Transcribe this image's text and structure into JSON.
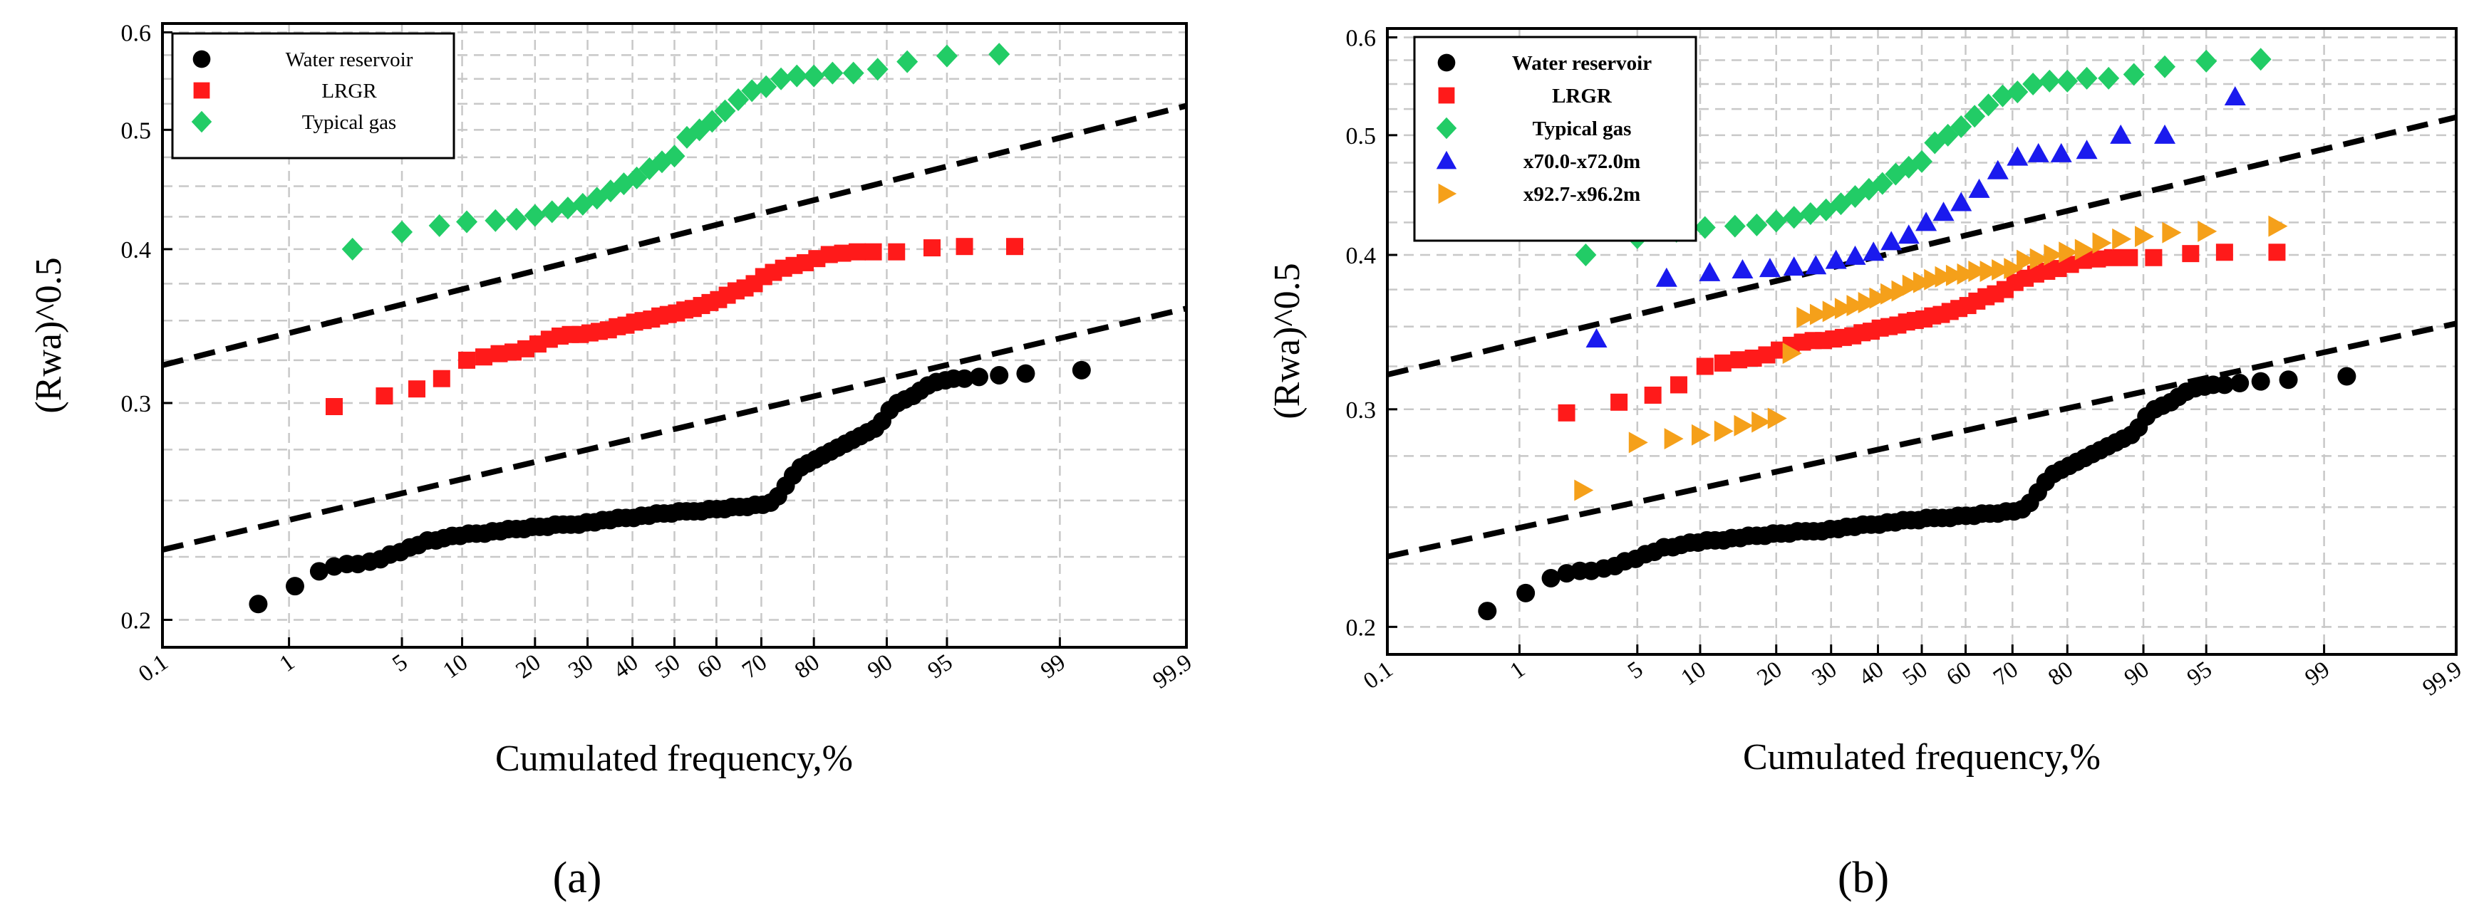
{
  "chart_data": [
    {
      "panel_label": "(a)",
      "type": "scatter",
      "xlabel": "Cumulated frequency,%",
      "ylabel": "(Rwa)^0.5",
      "x_scale": "probability",
      "y_scale": "log",
      "xlim": [
        0.1,
        99.9
      ],
      "ylim": [
        0.19,
        0.61
      ],
      "x_ticks": [
        0.1,
        1,
        5,
        10,
        20,
        30,
        40,
        50,
        60,
        70,
        80,
        90,
        95,
        99,
        99.9
      ],
      "x_tick_labels": [
        "0.1",
        "1",
        "5",
        "10",
        "20",
        "30",
        "40",
        "50",
        "60",
        "70",
        "80",
        "90",
        "95",
        "99",
        "99.9"
      ],
      "y_ticks": [
        0.2,
        0.3,
        0.4,
        0.5,
        0.6
      ],
      "y_tick_labels": [
        "0.2",
        "0.3",
        "0.4",
        "0.5",
        "0.6"
      ],
      "grid": true,
      "legend_position": "top-left",
      "series": [
        {
          "name": "Water reservoir",
          "marker": "circle",
          "color": "#000000",
          "x": [
            0.6,
            1.1,
            1.6,
            2.0,
            2.4,
            2.8,
            3.3,
            3.8,
            4.3,
            4.9,
            5.5,
            6.1,
            6.8,
            7.5,
            8.2,
            9.0,
            9.8,
            10.7,
            11.6,
            12.6,
            13.6,
            14.7,
            15.8,
            17.0,
            18.2,
            19.5,
            20.8,
            22.2,
            23.6,
            25.1,
            26.6,
            28.2,
            29.8,
            31.5,
            33.2,
            34.9,
            36.7,
            38.5,
            40.3,
            42.1,
            43.9,
            45.7,
            47.5,
            49.3,
            51.1,
            52.9,
            54.7,
            56.5,
            58.3,
            60.1,
            61.9,
            63.6,
            65.3,
            67.0,
            68.7,
            70.3,
            71.9,
            73.4,
            74.9,
            76.3,
            77.7,
            79.0,
            80.3,
            81.5,
            82.7,
            83.8,
            84.9,
            85.9,
            86.9,
            87.8,
            88.7,
            89.5,
            90.3,
            91.1,
            91.8,
            92.5,
            93.1,
            93.7,
            94.3,
            94.9,
            95.4,
            96.0,
            96.7,
            97.5,
            98.3,
            99.3
          ],
          "y": [
            0.206,
            0.213,
            0.219,
            0.221,
            0.222,
            0.222,
            0.223,
            0.224,
            0.226,
            0.227,
            0.229,
            0.23,
            0.232,
            0.232,
            0.233,
            0.234,
            0.234,
            0.235,
            0.235,
            0.235,
            0.236,
            0.236,
            0.237,
            0.237,
            0.237,
            0.238,
            0.238,
            0.238,
            0.239,
            0.239,
            0.239,
            0.239,
            0.24,
            0.24,
            0.241,
            0.241,
            0.242,
            0.242,
            0.242,
            0.243,
            0.243,
            0.244,
            0.244,
            0.244,
            0.245,
            0.245,
            0.245,
            0.245,
            0.246,
            0.246,
            0.246,
            0.247,
            0.247,
            0.247,
            0.248,
            0.248,
            0.249,
            0.252,
            0.257,
            0.262,
            0.266,
            0.268,
            0.27,
            0.272,
            0.274,
            0.276,
            0.278,
            0.28,
            0.282,
            0.284,
            0.286,
            0.29,
            0.296,
            0.3,
            0.302,
            0.304,
            0.307,
            0.31,
            0.312,
            0.313,
            0.314,
            0.314,
            0.315,
            0.316,
            0.317,
            0.319
          ]
        },
        {
          "name": "LRGR",
          "marker": "square",
          "color": "#ff1a1a",
          "x": [
            2.0,
            4.0,
            6.0,
            8.0,
            10.5,
            12.5,
            14.5,
            16.5,
            18.5,
            20.5,
            22.5,
            24.5,
            26.5,
            28.5,
            30.5,
            32.5,
            34.5,
            36.5,
            38.5,
            40.5,
            42.5,
            44.5,
            46.5,
            48.5,
            50.5,
            52.5,
            54.5,
            56.5,
            58.5,
            60.5,
            62.5,
            64.5,
            66.5,
            68.5,
            70.5,
            72.5,
            74.5,
            76.5,
            78.5,
            80.5,
            82.5,
            84.5,
            86.5,
            88.5,
            91.0,
            94.0,
            96.0,
            98.0
          ],
          "y": [
            0.298,
            0.304,
            0.308,
            0.314,
            0.325,
            0.327,
            0.329,
            0.33,
            0.332,
            0.335,
            0.338,
            0.34,
            0.341,
            0.341,
            0.342,
            0.343,
            0.344,
            0.346,
            0.347,
            0.349,
            0.35,
            0.351,
            0.353,
            0.354,
            0.355,
            0.357,
            0.358,
            0.36,
            0.362,
            0.364,
            0.367,
            0.37,
            0.372,
            0.375,
            0.38,
            0.383,
            0.386,
            0.388,
            0.39,
            0.393,
            0.396,
            0.397,
            0.398,
            0.398,
            0.398,
            0.401,
            0.402,
            0.402
          ]
        },
        {
          "name": "Typical gas",
          "marker": "diamond",
          "color": "#22cc66",
          "x": [
            2.6,
            5.0,
            7.8,
            10.5,
            14.0,
            17.0,
            20.0,
            23.0,
            26.0,
            29.0,
            32.0,
            35.0,
            38.0,
            41.0,
            44.0,
            47.0,
            50.0,
            53.0,
            56.0,
            59.0,
            62.0,
            65.0,
            68.0,
            71.0,
            74.0,
            77.0,
            80.0,
            83.0,
            86.0,
            89.0,
            92.0,
            95.0,
            97.5
          ],
          "y": [
            0.4,
            0.413,
            0.418,
            0.421,
            0.422,
            0.423,
            0.426,
            0.429,
            0.432,
            0.435,
            0.44,
            0.446,
            0.452,
            0.457,
            0.465,
            0.471,
            0.476,
            0.493,
            0.5,
            0.508,
            0.518,
            0.529,
            0.538,
            0.542,
            0.55,
            0.553,
            0.553,
            0.556,
            0.556,
            0.56,
            0.568,
            0.574,
            0.576
          ]
        }
      ],
      "trend_lines": [
        {
          "style": "dashed",
          "color": "#000000",
          "from": [
            0.1,
            0.322
          ],
          "to": [
            99.9,
            0.523
          ]
        },
        {
          "style": "dashed",
          "color": "#000000",
          "from": [
            0.1,
            0.228
          ],
          "to": [
            99.9,
            0.358
          ]
        }
      ]
    },
    {
      "panel_label": "(b)",
      "type": "scatter",
      "xlabel": "Cumulated frequency,%",
      "ylabel": "(Rwa)^0.5",
      "x_scale": "probability",
      "y_scale": "log",
      "xlim": [
        0.1,
        99.9
      ],
      "ylim": [
        0.19,
        0.61
      ],
      "x_ticks": [
        0.1,
        1,
        5,
        10,
        20,
        30,
        40,
        50,
        60,
        70,
        80,
        90,
        95,
        99,
        99.9
      ],
      "x_tick_labels": [
        "0.1",
        "1",
        "5",
        "10",
        "20",
        "30",
        "40",
        "50",
        "60",
        "70",
        "80",
        "90",
        "95",
        "99",
        "99.9"
      ],
      "y_ticks": [
        0.2,
        0.3,
        0.4,
        0.5,
        0.6
      ],
      "y_tick_labels": [
        "0.2",
        "0.3",
        "0.4",
        "0.5",
        "0.6"
      ],
      "grid": true,
      "legend_position": "top-left",
      "series": [
        {
          "name": "Water reservoir",
          "marker": "circle",
          "color": "#000000",
          "x": [
            0.6,
            1.1,
            1.6,
            2.0,
            2.4,
            2.8,
            3.3,
            3.8,
            4.3,
            4.9,
            5.5,
            6.1,
            6.8,
            7.5,
            8.2,
            9.0,
            9.8,
            10.7,
            11.6,
            12.6,
            13.6,
            14.7,
            15.8,
            17.0,
            18.2,
            19.5,
            20.8,
            22.2,
            23.6,
            25.1,
            26.6,
            28.2,
            29.8,
            31.5,
            33.2,
            34.9,
            36.7,
            38.5,
            40.3,
            42.1,
            43.9,
            45.7,
            47.5,
            49.3,
            51.1,
            52.9,
            54.7,
            56.5,
            58.3,
            60.1,
            61.9,
            63.6,
            65.3,
            67.0,
            68.7,
            70.3,
            71.9,
            73.4,
            74.9,
            76.3,
            77.7,
            79.0,
            80.3,
            81.5,
            82.7,
            83.8,
            84.9,
            85.9,
            86.9,
            87.8,
            88.7,
            89.5,
            90.3,
            91.1,
            91.8,
            92.5,
            93.1,
            93.7,
            94.3,
            94.9,
            95.4,
            96.0,
            96.7,
            97.5,
            98.3,
            99.3
          ],
          "y": [
            0.206,
            0.213,
            0.219,
            0.221,
            0.222,
            0.222,
            0.223,
            0.224,
            0.226,
            0.227,
            0.229,
            0.23,
            0.232,
            0.232,
            0.233,
            0.234,
            0.234,
            0.235,
            0.235,
            0.235,
            0.236,
            0.236,
            0.237,
            0.237,
            0.237,
            0.238,
            0.238,
            0.238,
            0.239,
            0.239,
            0.239,
            0.239,
            0.24,
            0.24,
            0.241,
            0.241,
            0.242,
            0.242,
            0.242,
            0.243,
            0.243,
            0.244,
            0.244,
            0.244,
            0.245,
            0.245,
            0.245,
            0.245,
            0.246,
            0.246,
            0.246,
            0.247,
            0.247,
            0.247,
            0.248,
            0.248,
            0.249,
            0.252,
            0.257,
            0.262,
            0.266,
            0.268,
            0.27,
            0.272,
            0.274,
            0.276,
            0.278,
            0.28,
            0.282,
            0.284,
            0.286,
            0.29,
            0.296,
            0.3,
            0.302,
            0.304,
            0.307,
            0.31,
            0.312,
            0.313,
            0.314,
            0.314,
            0.315,
            0.316,
            0.317,
            0.319
          ]
        },
        {
          "name": "LRGR",
          "marker": "square",
          "color": "#ff1a1a",
          "x": [
            2.0,
            4.0,
            6.0,
            8.0,
            10.5,
            12.5,
            14.5,
            16.5,
            18.5,
            20.5,
            22.5,
            24.5,
            26.5,
            28.5,
            30.5,
            32.5,
            34.5,
            36.5,
            38.5,
            40.5,
            42.5,
            44.5,
            46.5,
            48.5,
            50.5,
            52.5,
            54.5,
            56.5,
            58.5,
            60.5,
            62.5,
            64.5,
            66.5,
            68.5,
            70.5,
            72.5,
            74.5,
            76.5,
            78.5,
            80.5,
            82.5,
            84.5,
            86.5,
            88.5,
            91.0,
            94.0,
            96.0,
            98.0
          ],
          "y": [
            0.298,
            0.304,
            0.308,
            0.314,
            0.325,
            0.327,
            0.329,
            0.33,
            0.332,
            0.335,
            0.338,
            0.34,
            0.341,
            0.341,
            0.342,
            0.343,
            0.344,
            0.346,
            0.347,
            0.349,
            0.35,
            0.351,
            0.353,
            0.354,
            0.355,
            0.357,
            0.358,
            0.36,
            0.362,
            0.364,
            0.367,
            0.37,
            0.372,
            0.375,
            0.38,
            0.383,
            0.386,
            0.388,
            0.39,
            0.393,
            0.396,
            0.397,
            0.398,
            0.398,
            0.398,
            0.401,
            0.402,
            0.402
          ]
        },
        {
          "name": "Typical gas",
          "marker": "diamond",
          "color": "#22cc66",
          "x": [
            2.6,
            5.0,
            7.8,
            10.5,
            14.0,
            17.0,
            20.0,
            23.0,
            26.0,
            29.0,
            32.0,
            35.0,
            38.0,
            41.0,
            44.0,
            47.0,
            50.0,
            53.0,
            56.0,
            59.0,
            62.0,
            65.0,
            68.0,
            71.0,
            74.0,
            77.0,
            80.0,
            83.0,
            86.0,
            89.0,
            92.0,
            95.0,
            97.5
          ],
          "y": [
            0.4,
            0.413,
            0.418,
            0.421,
            0.422,
            0.423,
            0.426,
            0.429,
            0.432,
            0.435,
            0.44,
            0.446,
            0.452,
            0.457,
            0.465,
            0.471,
            0.476,
            0.493,
            0.5,
            0.508,
            0.518,
            0.529,
            0.538,
            0.542,
            0.55,
            0.553,
            0.553,
            0.556,
            0.556,
            0.56,
            0.568,
            0.574,
            0.576
          ]
        },
        {
          "name": "x70.0-x72.0m",
          "marker": "triangle-up",
          "color": "#1a1aee",
          "x": [
            3.0,
            7.0,
            11.0,
            15.0,
            19.0,
            23.0,
            27.0,
            31.0,
            35.0,
            39.0,
            43.0,
            47.0,
            51.0,
            55.0,
            59.0,
            63.0,
            67.0,
            71.0,
            75.0,
            79.0,
            83.0,
            87.5,
            92.0,
            96.5
          ],
          "y": [
            0.342,
            0.383,
            0.387,
            0.389,
            0.39,
            0.391,
            0.392,
            0.396,
            0.399,
            0.402,
            0.41,
            0.415,
            0.425,
            0.433,
            0.441,
            0.452,
            0.468,
            0.48,
            0.483,
            0.483,
            0.486,
            0.5,
            0.5,
            0.537
          ]
        },
        {
          "name": "x92.7-x96.2m",
          "marker": "triangle-right",
          "color": "#f5a01a",
          "x": [
            2.5,
            5.0,
            7.5,
            10.0,
            12.5,
            15.0,
            17.5,
            20.0,
            22.5,
            25.0,
            27.5,
            30.0,
            32.5,
            35.0,
            37.5,
            40.0,
            42.5,
            45.0,
            47.5,
            50.0,
            52.5,
            55.0,
            57.5,
            60.0,
            62.5,
            65.0,
            67.5,
            70.0,
            72.5,
            75.0,
            77.5,
            80.0,
            82.5,
            85.0,
            87.5,
            90.0,
            92.5,
            95.0,
            98.0
          ],
          "y": [
            0.258,
            0.282,
            0.284,
            0.286,
            0.288,
            0.291,
            0.293,
            0.295,
            0.333,
            0.356,
            0.358,
            0.36,
            0.362,
            0.364,
            0.366,
            0.369,
            0.372,
            0.374,
            0.378,
            0.38,
            0.382,
            0.384,
            0.385,
            0.386,
            0.388,
            0.388,
            0.389,
            0.39,
            0.396,
            0.397,
            0.4,
            0.402,
            0.404,
            0.409,
            0.412,
            0.414,
            0.417,
            0.418,
            0.422
          ]
        }
      ],
      "trend_lines": [
        {
          "style": "dashed",
          "color": "#000000",
          "from": [
            0.1,
            0.32
          ],
          "to": [
            99.9,
            0.517
          ]
        },
        {
          "style": "dashed",
          "color": "#000000",
          "from": [
            0.1,
            0.228
          ],
          "to": [
            99.9,
            0.352
          ]
        }
      ]
    }
  ]
}
